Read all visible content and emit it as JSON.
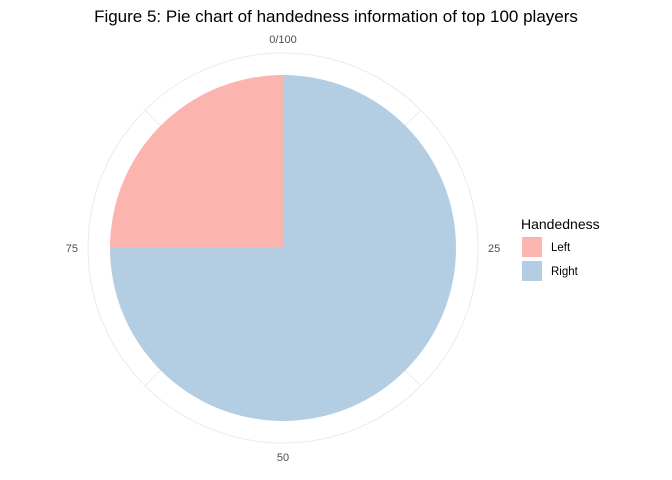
{
  "title": "Figure 5: Pie chart of handedness information of top 100 players",
  "chart_data": {
    "type": "pie",
    "title": "Figure 5: Pie chart of handedness information of top 100 players",
    "categories": [
      "Left",
      "Right"
    ],
    "values": [
      25,
      75
    ],
    "colors": [
      "#FBB4AE",
      "#B3CDE3"
    ],
    "theta_ticks": [
      {
        "label": "0/100",
        "value": 0
      },
      {
        "label": "25",
        "value": 25
      },
      {
        "label": "50",
        "value": 50
      },
      {
        "label": "75",
        "value": 75
      }
    ],
    "theta_range": [
      0,
      100
    ],
    "legend": {
      "title": "Handedness",
      "position": "right"
    },
    "grid": true
  }
}
